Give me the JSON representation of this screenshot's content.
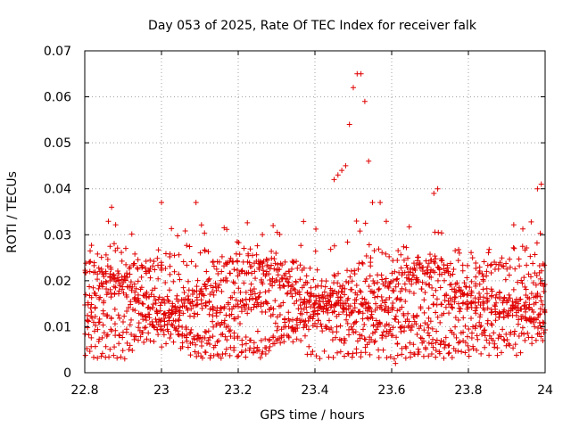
{
  "chart_data": {
    "type": "scatter",
    "title": "Day 053 of 2025, Rate Of TEC Index for receiver falk",
    "xlabel": "GPS time / hours",
    "ylabel": "ROTI / TECUs",
    "xlim": [
      22.8,
      24.0
    ],
    "ylim": [
      0,
      0.07
    ],
    "x_ticks": [
      "22.8",
      "23",
      "23.2",
      "23.4",
      "23.6",
      "23.8",
      "24"
    ],
    "y_ticks": [
      "0",
      "0.01",
      "0.02",
      "0.03",
      "0.04",
      "0.05",
      "0.06",
      "0.07"
    ],
    "grid": true,
    "marker": "plus",
    "series_color": "#e00000",
    "notable_points": [
      {
        "x": 23.49,
        "y": 0.054
      },
      {
        "x": 23.5,
        "y": 0.062
      },
      {
        "x": 23.51,
        "y": 0.065
      },
      {
        "x": 23.52,
        "y": 0.065
      },
      {
        "x": 23.53,
        "y": 0.059
      },
      {
        "x": 23.54,
        "y": 0.046
      },
      {
        "x": 23.45,
        "y": 0.042
      },
      {
        "x": 23.46,
        "y": 0.043
      },
      {
        "x": 23.47,
        "y": 0.044
      },
      {
        "x": 23.48,
        "y": 0.045
      },
      {
        "x": 23.55,
        "y": 0.037
      },
      {
        "x": 23.57,
        "y": 0.037
      },
      {
        "x": 23.71,
        "y": 0.039
      },
      {
        "x": 23.72,
        "y": 0.04
      },
      {
        "x": 23.98,
        "y": 0.04
      },
      {
        "x": 23.99,
        "y": 0.041
      },
      {
        "x": 23.09,
        "y": 0.037
      },
      {
        "x": 23.0,
        "y": 0.037
      },
      {
        "x": 22.87,
        "y": 0.036
      },
      {
        "x": 23.61,
        "y": 0.002
      },
      {
        "x": 23.38,
        "y": 0.004
      },
      {
        "x": 23.39,
        "y": 0.004
      }
    ],
    "bulk_range": {
      "y_min": 0.003,
      "y_max": 0.032,
      "y_center": 0.014
    }
  }
}
